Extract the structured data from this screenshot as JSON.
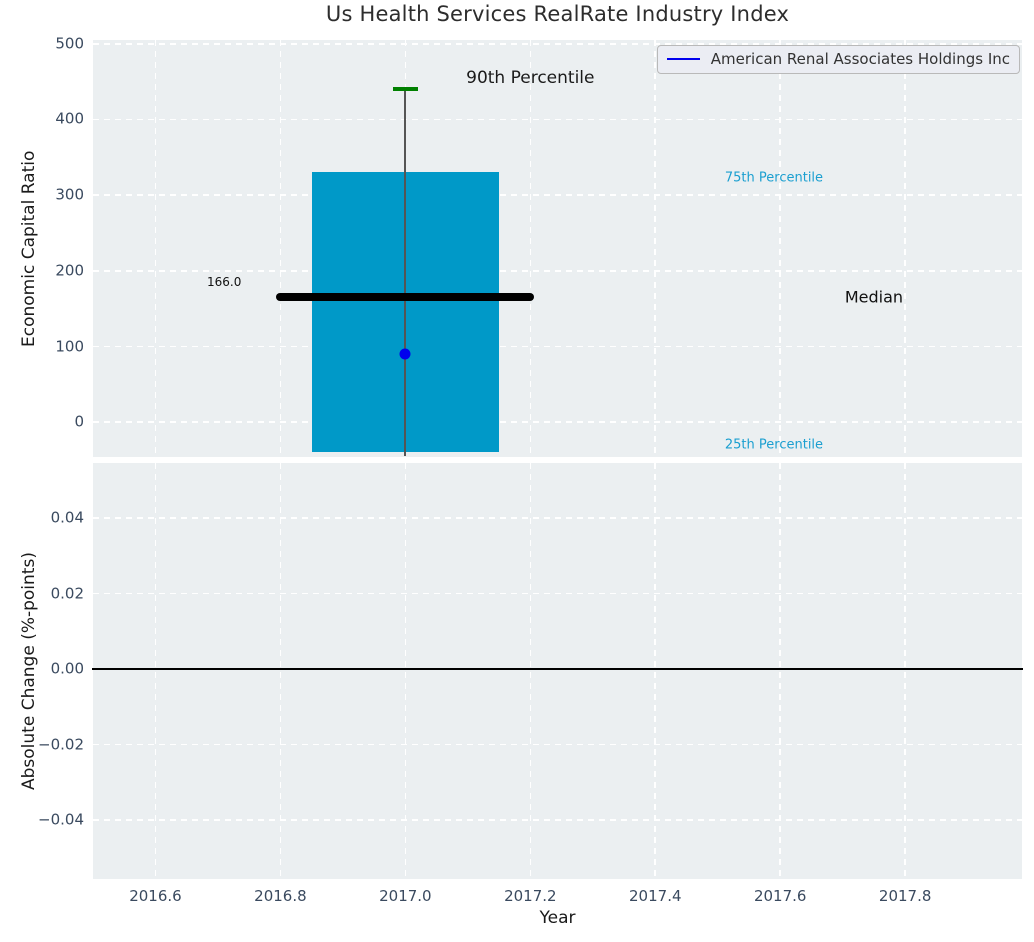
{
  "figure_title": "Us Health Services RealRate Industry Index",
  "style": {
    "axes_background": "#ebeff1",
    "grid_color": "#ffffff",
    "tick_label_color": "#3a4a5f",
    "title_color": "#2d2d2d"
  },
  "chart_data": [
    {
      "type": "box",
      "title": "Us Health Services RealRate Industry Index",
      "ylabel": "Economic Capital Ratio",
      "xlim": [
        2016.5,
        2017.987
      ],
      "ylim": [
        -46,
        505
      ],
      "grid": true,
      "yticks": [
        "0",
        "100",
        "200",
        "300",
        "400",
        "500"
      ],
      "ytick_values": [
        0,
        100,
        200,
        300,
        400,
        500
      ],
      "xtick_values": [
        2016.6,
        2016.8,
        2017.0,
        2017.2,
        2017.4,
        2017.6,
        2017.8
      ],
      "legend_position": "upper right",
      "legend_entries": [
        {
          "label": "American Renal Associates Holdings Inc",
          "color": "#0000ee"
        }
      ],
      "box": {
        "x": 2017.0,
        "width": 0.3,
        "p90": 440,
        "p75": 330,
        "median": 166,
        "p25": -40,
        "whisker_low": -45,
        "median_line_span": 0.4,
        "company_point": {
          "x": 2017.0,
          "y": 90,
          "color": "#0000ee"
        }
      },
      "colors": {
        "bar": "#0099c8",
        "median": "#000000",
        "whisker": "#555555",
        "cap": "#008000"
      },
      "annotations": [
        {
          "text": "90th Percentile",
          "x": 2017.2,
          "y": 455,
          "color": "#1a1a1a",
          "size": 17
        },
        {
          "text": "75th Percentile",
          "x": 2017.59,
          "y": 322,
          "color": "#1b9fd0",
          "size": 13
        },
        {
          "text": "166.0",
          "x": 2016.71,
          "y": 185,
          "color": "#111111",
          "size": 12
        },
        {
          "text": "Median",
          "x": 2017.75,
          "y": 166,
          "color": "#111111",
          "size": 16
        },
        {
          "text": "25th Percentile",
          "x": 2017.59,
          "y": -30,
          "color": "#1b9fd0",
          "size": 13
        }
      ]
    },
    {
      "type": "line",
      "ylabel": "Absolute Change (%-points)",
      "xlabel": "Year",
      "xlim": [
        2016.5,
        2017.987
      ],
      "ylim": [
        -0.0556,
        0.0546
      ],
      "grid": true,
      "yticks": [
        "0.04",
        "0.02",
        "0.00",
        "−0.02",
        "−0.04"
      ],
      "ytick_values": [
        0.04,
        0.02,
        0.0,
        -0.02,
        -0.04
      ],
      "xticks": [
        "2016.6",
        "2016.8",
        "2017.0",
        "2017.2",
        "2017.4",
        "2017.6",
        "2017.8"
      ],
      "xtick_values": [
        2016.6,
        2016.8,
        2017.0,
        2017.2,
        2017.4,
        2017.6,
        2017.8
      ],
      "zero_line": 0.0,
      "series": []
    }
  ]
}
